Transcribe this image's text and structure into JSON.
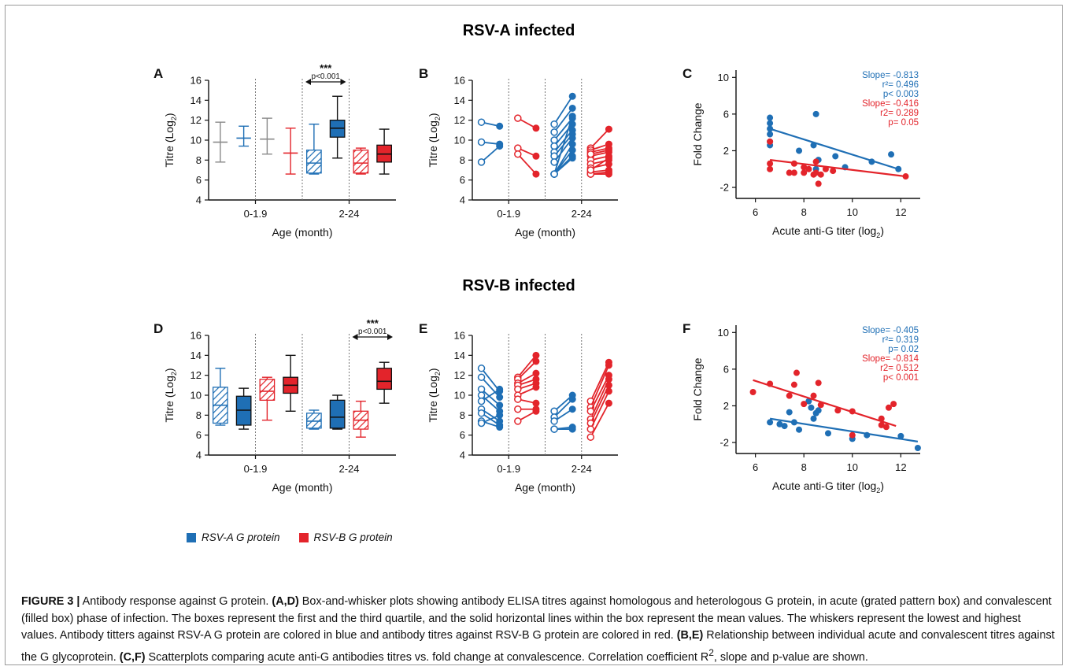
{
  "figure": {
    "section_a_title": "RSV-A infected",
    "section_b_title": "RSV-B infected",
    "legend": [
      {
        "label": "RSV-A G protein",
        "color": "#1f6fb5"
      },
      {
        "label": "RSV-B G protein",
        "color": "#e3242b"
      }
    ],
    "caption": {
      "label": "FIGURE 3 |",
      "title": " Antibody response against G protein. ",
      "p1_bold": "(A,D)",
      "p1": " Box-and-whisker plots showing antibody ELISA titres against homologous and heterologous G protein, in acute (grated pattern box) and convalescent (filled box) phase of infection. The boxes represent the first and the third quartile, and the solid horizontal lines within the box represent the mean values. The whiskers represent the lowest and highest values. Antibody titters against RSV-A G protein are colored in blue and antibody titres against RSV-B G protein are colored in red. ",
      "p2_bold": "(B,E)",
      "p2": " Relationship between individual acute and convalescent titres against the G glycoprotein. ",
      "p3_bold": "(C,F)",
      "p3": " Scatterplots comparing acute anti-G antibodies titres vs. fold change at convalescence. Correlation coefficient R",
      "p3_sup": "2",
      "p3_end": ", slope and p-value are shown."
    },
    "colors": {
      "blue": "#1f6fb5",
      "red": "#e3242b",
      "grey": "#8a8a8a"
    }
  },
  "chart_data": [
    {
      "panel": "A",
      "type": "box",
      "ylabel": "Titre (Log",
      "ylabel_sub": "2",
      "ylabel_end": ")",
      "xlabel": "Age (month)",
      "ylim": [
        4,
        16
      ],
      "yticks": [
        4,
        6,
        8,
        10,
        12,
        14,
        16
      ],
      "groups": [
        "0-1.9",
        "2-24"
      ],
      "annotation": {
        "stars": "***",
        "p": "p<0.001",
        "between_boxes": [
          4,
          5
        ]
      },
      "boxes": [
        {
          "group": "0-1.9",
          "protein": "RSV-A",
          "phase": "acute",
          "style": "none",
          "color": "grey",
          "min": 7.8,
          "q1": 9.8,
          "mean": 9.8,
          "q3": 9.8,
          "max": 11.8
        },
        {
          "group": "0-1.9",
          "protein": "RSV-A",
          "phase": "convalescent",
          "style": "none",
          "color": "blue",
          "min": 9.4,
          "q1": 10.2,
          "mean": 10.2,
          "q3": 10.2,
          "max": 11.4
        },
        {
          "group": "0-1.9",
          "protein": "RSV-B",
          "phase": "acute",
          "style": "none",
          "color": "grey",
          "min": 8.6,
          "q1": 10.1,
          "mean": 10.1,
          "q3": 10.1,
          "max": 12.2
        },
        {
          "group": "0-1.9",
          "protein": "RSV-B",
          "phase": "convalescent",
          "style": "none",
          "color": "red",
          "min": 6.6,
          "q1": 8.7,
          "mean": 8.7,
          "q3": 8.7,
          "max": 11.2
        },
        {
          "group": "2-24",
          "protein": "RSV-A",
          "phase": "acute",
          "style": "hatched",
          "color": "blue",
          "min": 6.6,
          "q1": 6.7,
          "mean": 7.7,
          "q3": 9.0,
          "max": 11.6
        },
        {
          "group": "2-24",
          "protein": "RSV-A",
          "phase": "convalescent",
          "style": "filled",
          "color": "blue",
          "min": 8.2,
          "q1": 10.3,
          "mean": 11.2,
          "q3": 12.0,
          "max": 14.4
        },
        {
          "group": "2-24",
          "protein": "RSV-B",
          "phase": "acute",
          "style": "hatched",
          "color": "red",
          "min": 6.6,
          "q1": 6.7,
          "mean": 7.7,
          "q3": 9.0,
          "max": 9.2
        },
        {
          "group": "2-24",
          "protein": "RSV-B",
          "phase": "convalescent",
          "style": "filled",
          "color": "red",
          "min": 6.6,
          "q1": 7.8,
          "mean": 8.6,
          "q3": 9.5,
          "max": 11.1
        }
      ]
    },
    {
      "panel": "B",
      "type": "paired-line",
      "ylabel": "Titre (Log",
      "ylabel_sub": "2",
      "ylabel_end": ")",
      "xlabel": "Age (month)",
      "ylim": [
        4,
        16
      ],
      "yticks": [
        4,
        6,
        8,
        10,
        12,
        14,
        16
      ],
      "groups": [
        "0-1.9",
        "2-24"
      ],
      "series": [
        {
          "group": "0-1.9",
          "color": "blue",
          "pairs": [
            [
              11.8,
              11.4
            ],
            [
              9.8,
              9.6
            ],
            [
              7.8,
              9.4
            ]
          ]
        },
        {
          "group": "0-1.9",
          "color": "red",
          "pairs": [
            [
              12.2,
              11.2
            ],
            [
              9.2,
              8.4
            ],
            [
              8.6,
              6.6
            ]
          ]
        },
        {
          "group": "2-24",
          "color": "blue",
          "pairs": [
            [
              11.6,
              14.4
            ],
            [
              10.8,
              13.2
            ],
            [
              10.0,
              12.2
            ],
            [
              9.4,
              11.6
            ],
            [
              8.8,
              11.0
            ],
            [
              8.4,
              10.6
            ],
            [
              7.8,
              10.2
            ],
            [
              6.6,
              9.6
            ],
            [
              6.6,
              9.0
            ],
            [
              6.6,
              8.4
            ],
            [
              6.6,
              8.2
            ],
            [
              6.6,
              12.4
            ]
          ]
        },
        {
          "group": "2-24",
          "color": "red",
          "pairs": [
            [
              9.2,
              11.1
            ],
            [
              9.0,
              9.6
            ],
            [
              8.8,
              9.2
            ],
            [
              8.4,
              8.8
            ],
            [
              8.0,
              8.4
            ],
            [
              7.6,
              8.0
            ],
            [
              7.2,
              7.6
            ],
            [
              6.8,
              7.0
            ],
            [
              6.6,
              6.8
            ],
            [
              6.6,
              6.6
            ],
            [
              8.6,
              9.0
            ],
            [
              7.0,
              8.2
            ]
          ]
        }
      ]
    },
    {
      "panel": "C",
      "type": "scatter",
      "ylabel": "Fold Change",
      "xlabel": "Acute anti-G titer (log",
      "xlabel_sub": "2",
      "xlabel_end": ")",
      "xlim": [
        5.2,
        12.8
      ],
      "ylim": [
        -3.2,
        10.8
      ],
      "xticks": [
        6,
        8,
        10,
        12
      ],
      "yticks": [
        -2,
        2,
        6,
        10
      ],
      "stats_blue": [
        "Slope= -0.813",
        "r²= 0.496",
        "p< 0.003"
      ],
      "stats_red": [
        "Slope= -0.416",
        "r2= 0.289",
        "p= 0.05"
      ],
      "series": [
        {
          "color": "blue",
          "fit": [
            [
              6.6,
              4.4
            ],
            [
              11.9,
              0.0
            ]
          ],
          "points": [
            [
              6.6,
              5.6
            ],
            [
              6.6,
              5.0
            ],
            [
              6.6,
              4.4
            ],
            [
              6.6,
              3.8
            ],
            [
              6.6,
              3.0
            ],
            [
              6.6,
              2.6
            ],
            [
              7.8,
              2.0
            ],
            [
              8.4,
              2.6
            ],
            [
              8.5,
              6.0
            ],
            [
              8.5,
              0.0
            ],
            [
              8.6,
              1.0
            ],
            [
              9.3,
              1.4
            ],
            [
              9.7,
              0.2
            ],
            [
              10.8,
              0.8
            ],
            [
              11.6,
              1.6
            ],
            [
              11.9,
              0.0
            ]
          ]
        },
        {
          "color": "red",
          "fit": [
            [
              6.6,
              1.0
            ],
            [
              12.2,
              -0.8
            ]
          ],
          "points": [
            [
              6.6,
              3.0
            ],
            [
              6.6,
              0.6
            ],
            [
              6.6,
              0.0
            ],
            [
              7.4,
              -0.4
            ],
            [
              7.6,
              0.6
            ],
            [
              7.6,
              -0.4
            ],
            [
              8.0,
              0.2
            ],
            [
              8.0,
              -0.4
            ],
            [
              8.2,
              0.0
            ],
            [
              8.4,
              -0.6
            ],
            [
              8.5,
              0.8
            ],
            [
              8.5,
              -0.4
            ],
            [
              8.6,
              -1.6
            ],
            [
              8.7,
              -0.6
            ],
            [
              8.9,
              0.0
            ],
            [
              9.2,
              -0.2
            ],
            [
              12.2,
              -0.8
            ]
          ]
        }
      ]
    },
    {
      "panel": "D",
      "type": "box",
      "ylabel": "Titre (Log",
      "ylabel_sub": "2",
      "ylabel_end": ")",
      "xlabel": "Age (month)",
      "ylim": [
        4,
        16
      ],
      "yticks": [
        4,
        6,
        8,
        10,
        12,
        14,
        16
      ],
      "groups": [
        "0-1.9",
        "2-24"
      ],
      "annotation": {
        "stars": "***",
        "p": "p<0.001",
        "between_boxes": [
          6,
          7
        ]
      },
      "boxes": [
        {
          "group": "0-1.9",
          "protein": "RSV-A",
          "phase": "acute",
          "style": "hatched",
          "color": "blue",
          "min": 7.0,
          "q1": 7.2,
          "mean": 9.0,
          "q3": 10.8,
          "max": 12.7
        },
        {
          "group": "0-1.9",
          "protein": "RSV-A",
          "phase": "convalescent",
          "style": "filled",
          "color": "blue",
          "min": 6.6,
          "q1": 7.0,
          "mean": 8.5,
          "q3": 9.9,
          "max": 10.7
        },
        {
          "group": "0-1.9",
          "protein": "RSV-B",
          "phase": "acute",
          "style": "hatched",
          "color": "red",
          "min": 7.5,
          "q1": 9.5,
          "mean": 10.4,
          "q3": 11.6,
          "max": 11.8
        },
        {
          "group": "0-1.9",
          "protein": "RSV-B",
          "phase": "convalescent",
          "style": "filled",
          "color": "red",
          "min": 8.4,
          "q1": 10.2,
          "mean": 11.0,
          "q3": 11.8,
          "max": 14.0
        },
        {
          "group": "2-24",
          "protein": "RSV-A",
          "phase": "acute",
          "style": "hatched",
          "color": "blue",
          "min": 6.6,
          "q1": 6.7,
          "mean": 7.4,
          "q3": 8.2,
          "max": 8.5
        },
        {
          "group": "2-24",
          "protein": "RSV-A",
          "phase": "convalescent",
          "style": "filled",
          "color": "blue",
          "min": 6.6,
          "q1": 6.7,
          "mean": 7.8,
          "q3": 9.5,
          "max": 10.0
        },
        {
          "group": "2-24",
          "protein": "RSV-B",
          "phase": "acute",
          "style": "hatched",
          "color": "red",
          "min": 5.8,
          "q1": 6.6,
          "mean": 7.5,
          "q3": 8.4,
          "max": 9.4
        },
        {
          "group": "2-24",
          "protein": "RSV-B",
          "phase": "convalescent",
          "style": "filled",
          "color": "red",
          "min": 9.2,
          "q1": 10.6,
          "mean": 11.4,
          "q3": 12.7,
          "max": 13.3
        }
      ]
    },
    {
      "panel": "E",
      "type": "paired-line",
      "ylabel": "Titre (Log",
      "ylabel_sub": "2",
      "ylabel_end": ")",
      "xlabel": "Age (month)",
      "ylim": [
        4,
        16
      ],
      "yticks": [
        4,
        6,
        8,
        10,
        12,
        14,
        16
      ],
      "groups": [
        "0-1.9",
        "2-24"
      ],
      "series": [
        {
          "group": "0-1.9",
          "color": "blue",
          "pairs": [
            [
              12.7,
              10.4
            ],
            [
              11.8,
              9.8
            ],
            [
              10.6,
              9.0
            ],
            [
              10.0,
              8.4
            ],
            [
              9.4,
              10.6
            ],
            [
              8.6,
              7.4
            ],
            [
              8.2,
              7.0
            ],
            [
              7.4,
              6.8
            ],
            [
              7.2,
              8.0
            ]
          ]
        },
        {
          "group": "0-1.9",
          "color": "red",
          "pairs": [
            [
              11.8,
              14.0
            ],
            [
              11.6,
              13.4
            ],
            [
              11.2,
              12.2
            ],
            [
              11.0,
              11.6
            ],
            [
              10.6,
              11.2
            ],
            [
              10.0,
              10.8
            ],
            [
              9.6,
              9.2
            ],
            [
              8.6,
              8.6
            ],
            [
              7.4,
              8.4
            ]
          ]
        },
        {
          "group": "2-24",
          "color": "blue",
          "pairs": [
            [
              8.4,
              10.0
            ],
            [
              7.8,
              9.6
            ],
            [
              7.4,
              8.6
            ],
            [
              6.6,
              6.8
            ],
            [
              6.6,
              6.6
            ]
          ]
        },
        {
          "group": "2-24",
          "color": "red",
          "pairs": [
            [
              9.4,
              13.3
            ],
            [
              8.8,
              13.0
            ],
            [
              8.4,
              12.0
            ],
            [
              7.6,
              11.6
            ],
            [
              7.2,
              11.0
            ],
            [
              6.6,
              10.4
            ],
            [
              5.8,
              9.2
            ]
          ]
        }
      ]
    },
    {
      "panel": "F",
      "type": "scatter",
      "ylabel": "Fold Change",
      "xlabel": "Acute anti-G titer (log",
      "xlabel_sub": "2",
      "xlabel_end": ")",
      "xlim": [
        5.2,
        12.8
      ],
      "ylim": [
        -3.2,
        10.8
      ],
      "xticks": [
        6,
        8,
        10,
        12
      ],
      "yticks": [
        -2,
        2,
        6,
        10
      ],
      "stats_blue": [
        "Slope= -0.405",
        "r²= 0.319",
        "p= 0.02"
      ],
      "stats_red": [
        "Slope= -0.814",
        "r2= 0.512",
        "p< 0.001"
      ],
      "series": [
        {
          "color": "blue",
          "fit": [
            [
              6.6,
              0.6
            ],
            [
              12.7,
              -1.9
            ]
          ],
          "points": [
            [
              6.6,
              0.2
            ],
            [
              7.0,
              0.0
            ],
            [
              7.2,
              -0.2
            ],
            [
              7.4,
              1.3
            ],
            [
              7.6,
              0.2
            ],
            [
              7.8,
              -0.6
            ],
            [
              8.2,
              2.5
            ],
            [
              8.3,
              1.8
            ],
            [
              8.4,
              0.6
            ],
            [
              8.5,
              1.2
            ],
            [
              8.6,
              1.5
            ],
            [
              9.0,
              -1.0
            ],
            [
              10.0,
              -1.6
            ],
            [
              10.6,
              -1.2
            ],
            [
              12.0,
              -1.3
            ],
            [
              12.7,
              -2.6
            ]
          ]
        },
        {
          "color": "red",
          "fit": [
            [
              5.9,
              4.8
            ],
            [
              11.8,
              -0.2
            ]
          ],
          "points": [
            [
              5.9,
              3.5
            ],
            [
              6.6,
              4.4
            ],
            [
              7.4,
              3.1
            ],
            [
              7.6,
              4.3
            ],
            [
              7.7,
              5.6
            ],
            [
              8.0,
              2.2
            ],
            [
              8.4,
              3.1
            ],
            [
              8.6,
              4.5
            ],
            [
              8.7,
              2.1
            ],
            [
              9.4,
              1.5
            ],
            [
              10.0,
              1.4
            ],
            [
              10.0,
              -1.2
            ],
            [
              11.2,
              0.6
            ],
            [
              11.5,
              1.8
            ],
            [
              11.7,
              2.2
            ],
            [
              11.2,
              -0.1
            ],
            [
              11.4,
              -0.3
            ]
          ]
        }
      ]
    }
  ]
}
